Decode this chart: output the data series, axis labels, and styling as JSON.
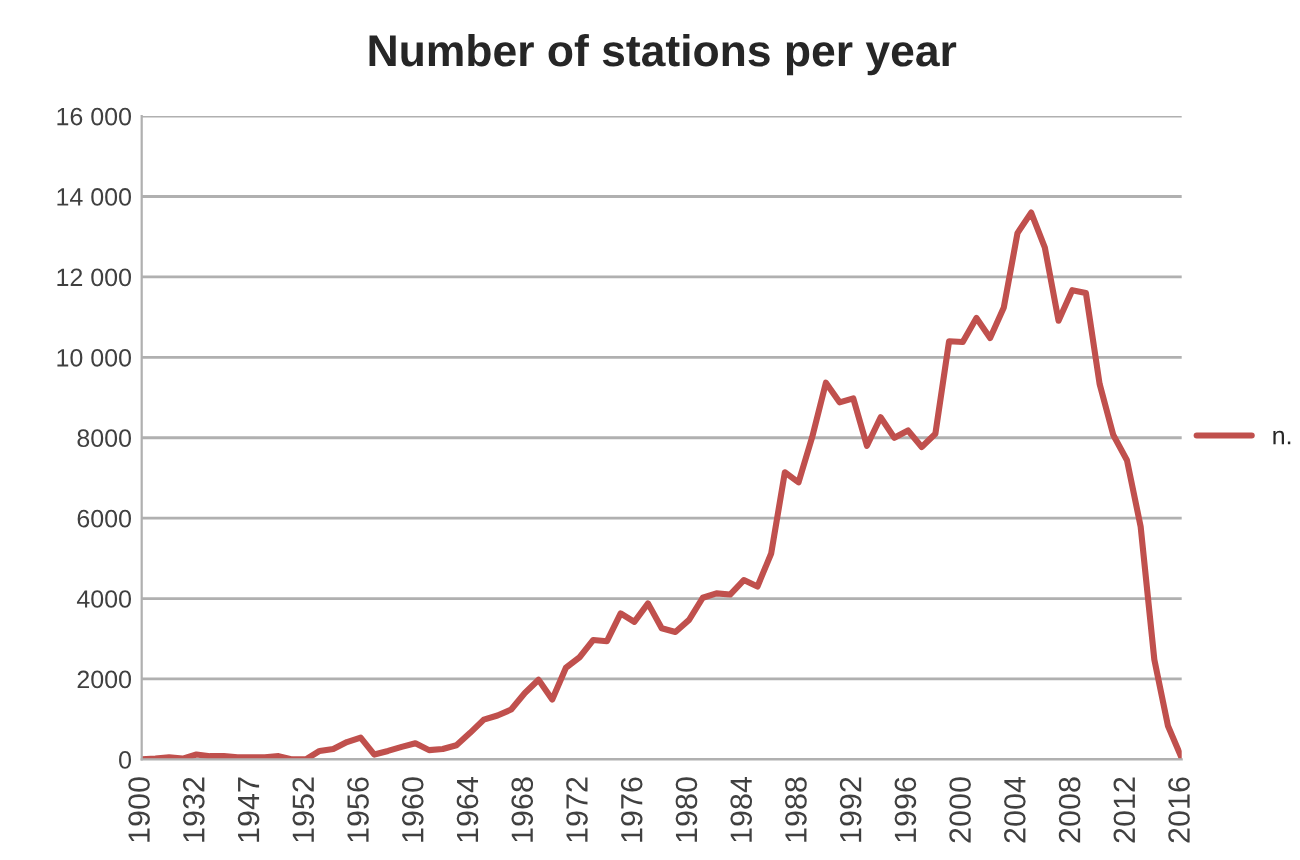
{
  "chart_data": {
    "type": "line",
    "title": "Number of stations per year",
    "categories": [
      "1900",
      null,
      null,
      null,
      "1932",
      null,
      null,
      null,
      "1947",
      null,
      null,
      null,
      "1952",
      null,
      null,
      null,
      "1956",
      null,
      null,
      null,
      "1960",
      null,
      null,
      null,
      "1964",
      null,
      null,
      null,
      "1968",
      null,
      null,
      null,
      "1972",
      null,
      null,
      null,
      "1976",
      null,
      null,
      null,
      "1980",
      null,
      null,
      null,
      "1984",
      null,
      null,
      null,
      "1988",
      null,
      null,
      null,
      "1992",
      null,
      null,
      null,
      "1996",
      null,
      null,
      null,
      "2000",
      null,
      null,
      null,
      "2004",
      null,
      null,
      null,
      "2008",
      null,
      null,
      null,
      "2012",
      null,
      null,
      null,
      "2016"
    ],
    "series": [
      {
        "name": "n.",
        "color": "#c0504d",
        "values": [
          0,
          20,
          50,
          20,
          120,
          80,
          80,
          50,
          50,
          50,
          80,
          0,
          0,
          210,
          260,
          430,
          540,
          120,
          210,
          310,
          400,
          230,
          260,
          350,
          660,
          990,
          1090,
          1240,
          1650,
          1980,
          1490,
          2280,
          2540,
          2970,
          2940,
          3630,
          3420,
          3880,
          3260,
          3170,
          3470,
          4020,
          4130,
          4100,
          4460,
          4300,
          5120,
          7140,
          6890,
          8020,
          9370,
          8880,
          8980,
          7800,
          8510,
          8000,
          8180,
          7770,
          8100,
          10400,
          10380,
          10980,
          10480,
          11240,
          13090,
          13600,
          12730,
          10910,
          11670,
          11600,
          9340,
          8070,
          7440,
          5790,
          2480,
          830,
          30
        ]
      }
    ],
    "ylim": [
      0,
      16000
    ],
    "yticks": [
      0,
      2000,
      4000,
      6000,
      8000,
      {
        "value": 10000,
        "label": "10 000"
      },
      {
        "value": 12000,
        "label": "12 000"
      },
      {
        "value": 14000,
        "label": "14 000"
      },
      {
        "value": 16000,
        "label": "16 000"
      }
    ],
    "grid": "y",
    "legend": "right",
    "marker": "none",
    "line_style": "solid"
  }
}
